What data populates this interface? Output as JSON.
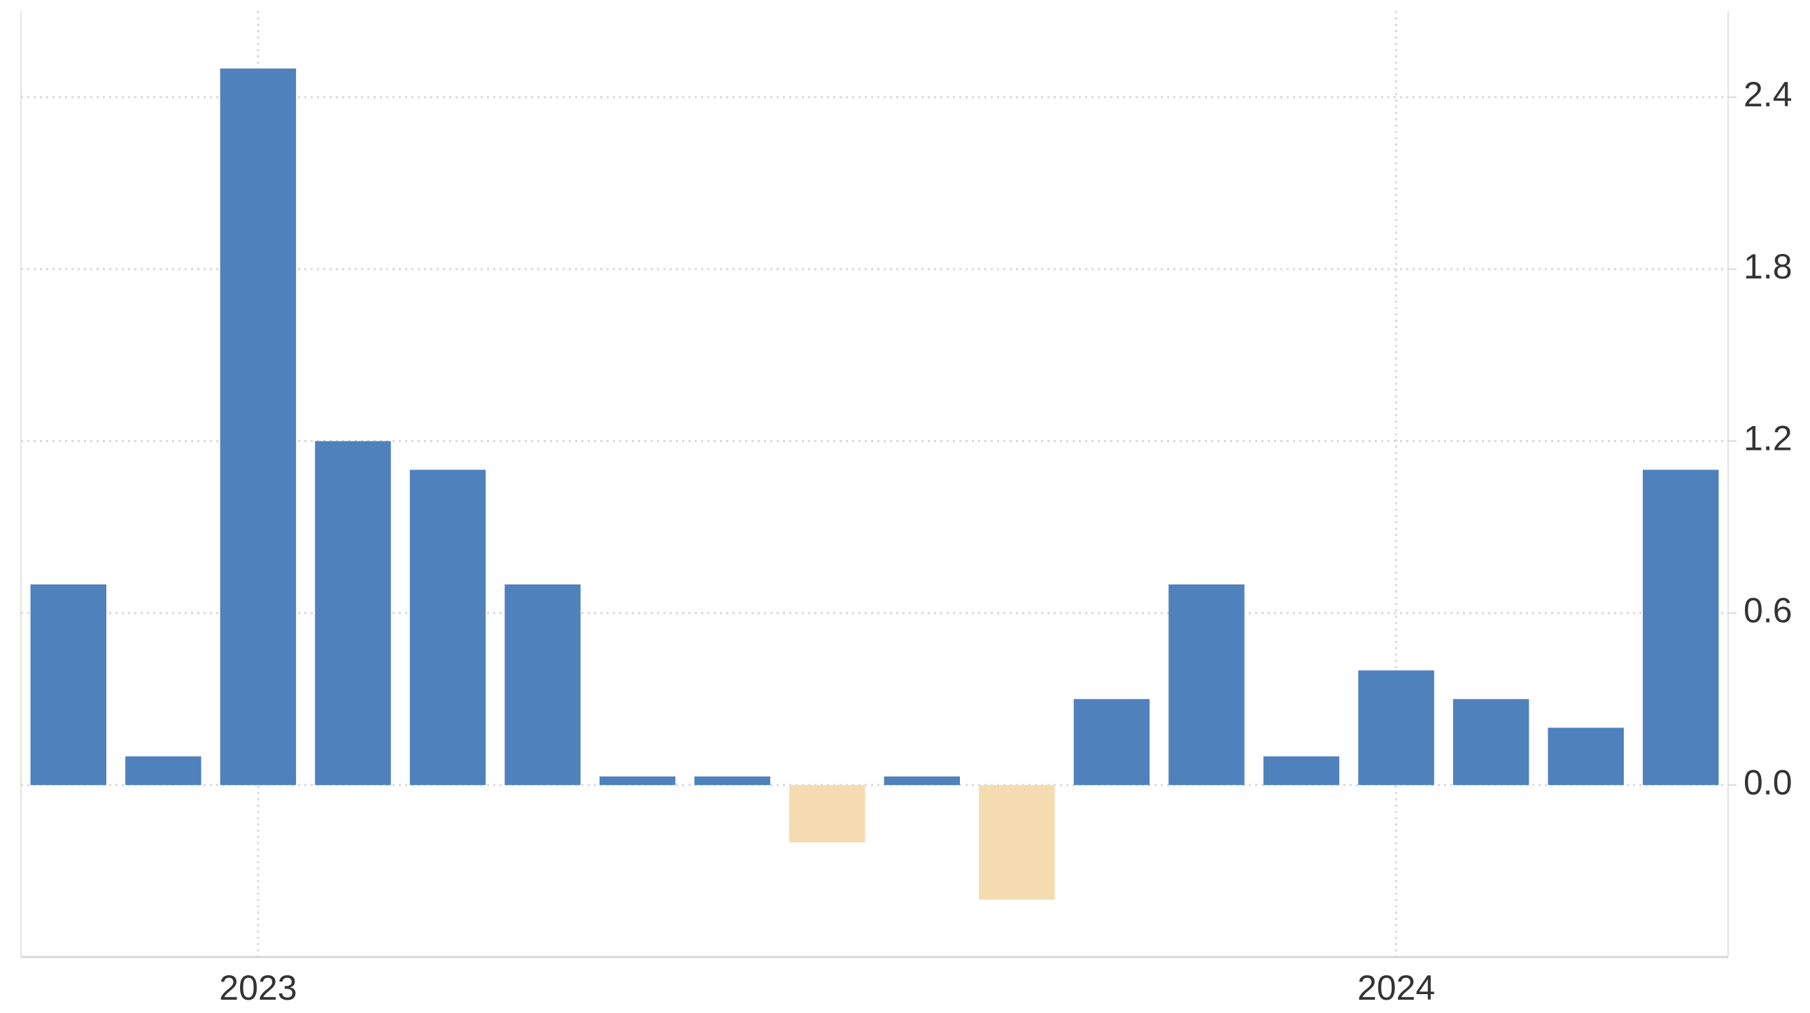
{
  "chart_data": {
    "type": "bar",
    "categories": [
      null,
      null,
      "2023",
      null,
      null,
      null,
      null,
      null,
      null,
      null,
      null,
      null,
      null,
      null,
      "2024",
      null,
      null,
      null
    ],
    "values": [
      0.7,
      0.1,
      2.5,
      1.2,
      1.1,
      0.7,
      0.03,
      0.03,
      -0.2,
      0.03,
      -0.4,
      0.3,
      0.7,
      0.1,
      0.4,
      0.3,
      0.2,
      1.1
    ],
    "color": "#4f81bd",
    "negative_color": "#f5dcb0",
    "ylim": [
      -0.6,
      2.7
    ],
    "yticks": [
      {
        "value": 0,
        "label": "0.0"
      },
      0.6,
      1.2,
      1.8,
      2.4
    ],
    "grid": true
  }
}
